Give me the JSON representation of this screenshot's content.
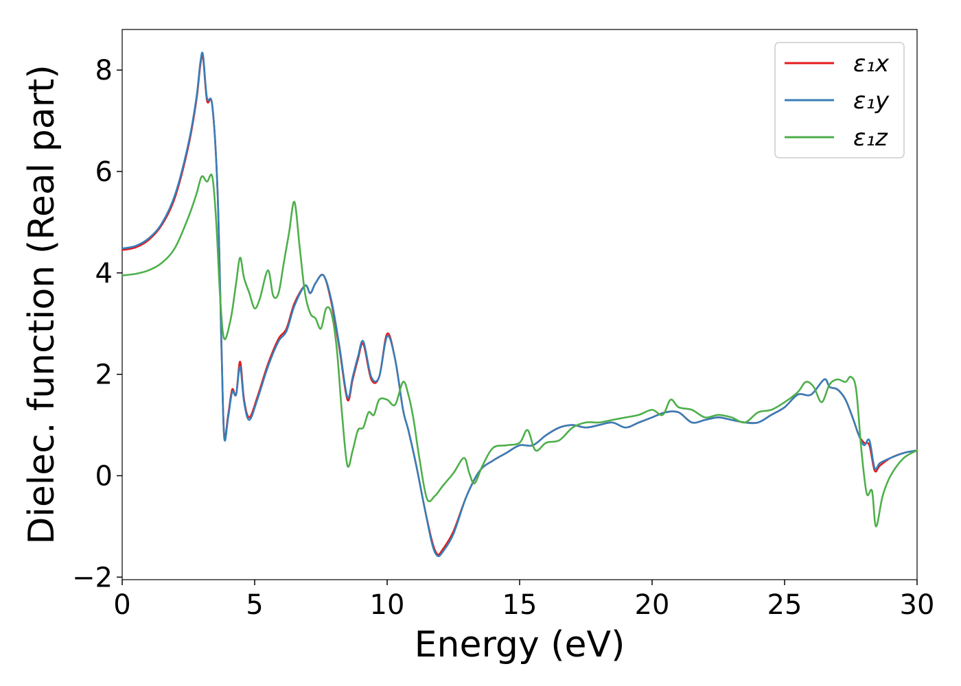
{
  "chart_data": {
    "type": "line",
    "xlabel": "Energy (eV)",
    "ylabel": "Dielec. function (Real part)",
    "xlim": [
      0,
      30
    ],
    "ylim": [
      -2.05,
      8.8
    ],
    "xticks": [
      0,
      5,
      10,
      15,
      20,
      25,
      30
    ],
    "xtick_labels": [
      "0",
      "5",
      "10",
      "15",
      "20",
      "25",
      "30"
    ],
    "yticks": [
      -2,
      0,
      2,
      4,
      6,
      8
    ],
    "ytick_labels": [
      "−2",
      "0",
      "2",
      "4",
      "6",
      "8"
    ],
    "grid": false,
    "legend_position": "top-right",
    "series": [
      {
        "name": "ε₁x",
        "color": "#e41a1c",
        "x": [
          0,
          0.5,
          1,
          1.5,
          2,
          2.5,
          2.8,
          2.95,
          3.05,
          3.2,
          3.4,
          3.6,
          3.75,
          3.85,
          4.0,
          4.15,
          4.3,
          4.45,
          4.6,
          4.8,
          5.1,
          5.5,
          5.9,
          6.2,
          6.5,
          6.9,
          7.1,
          7.3,
          7.6,
          7.9,
          8.2,
          8.5,
          8.7,
          8.9,
          9.1,
          9.4,
          9.7,
          10.0,
          10.3,
          10.6,
          10.8,
          11.1,
          11.4,
          11.7,
          11.9,
          12.1,
          12.5,
          13.0,
          13.5,
          14.0,
          14.5,
          15.0,
          15.5,
          16.0,
          16.5,
          17.0,
          17.5,
          18.0,
          18.5,
          19.0,
          19.5,
          20.0,
          20.5,
          21.0,
          21.5,
          22.0,
          22.5,
          23.0,
          23.5,
          24.0,
          24.5,
          25.0,
          25.5,
          26.0,
          26.5,
          26.7,
          27.0,
          27.3,
          27.6,
          27.8,
          28.0,
          28.2,
          28.4,
          28.6,
          29.0,
          29.5,
          30.0
        ],
        "y": [
          4.45,
          4.5,
          4.65,
          4.95,
          5.5,
          6.5,
          7.4,
          8.1,
          8.25,
          7.4,
          7.3,
          5.6,
          2.5,
          0.8,
          1.2,
          1.7,
          1.6,
          2.25,
          1.5,
          1.15,
          1.55,
          2.2,
          2.7,
          2.9,
          3.4,
          3.75,
          3.6,
          3.8,
          3.95,
          3.4,
          2.5,
          1.5,
          1.9,
          2.3,
          2.6,
          1.9,
          1.95,
          2.8,
          2.3,
          1.3,
          0.9,
          0.2,
          -0.6,
          -1.3,
          -1.55,
          -1.45,
          -1.1,
          -0.4,
          0.1,
          0.3,
          0.45,
          0.6,
          0.6,
          0.8,
          0.95,
          1.0,
          0.95,
          1.0,
          1.05,
          0.95,
          1.05,
          1.15,
          1.25,
          1.25,
          1.05,
          1.1,
          1.15,
          1.1,
          1.05,
          1.05,
          1.2,
          1.35,
          1.6,
          1.6,
          1.9,
          1.75,
          1.7,
          1.5,
          1.1,
          0.8,
          0.65,
          0.6,
          0.1,
          0.2,
          0.35,
          0.45,
          0.5
        ]
      },
      {
        "name": "ε₁y",
        "color": "#377eb8",
        "x": [
          0,
          0.5,
          1,
          1.5,
          2,
          2.5,
          2.8,
          2.95,
          3.05,
          3.2,
          3.4,
          3.6,
          3.75,
          3.85,
          4.0,
          4.15,
          4.3,
          4.45,
          4.6,
          4.8,
          5.1,
          5.5,
          5.9,
          6.2,
          6.5,
          6.9,
          7.1,
          7.3,
          7.6,
          7.9,
          8.2,
          8.5,
          8.7,
          8.9,
          9.1,
          9.4,
          9.7,
          10.0,
          10.3,
          10.6,
          10.8,
          11.1,
          11.4,
          11.7,
          11.9,
          12.1,
          12.5,
          13.0,
          13.5,
          14.0,
          14.5,
          15.0,
          15.5,
          16.0,
          16.5,
          17.0,
          17.5,
          18.0,
          18.5,
          19.0,
          19.5,
          20.0,
          20.5,
          21.0,
          21.5,
          22.0,
          22.5,
          23.0,
          23.5,
          24.0,
          24.5,
          25.0,
          25.5,
          26.0,
          26.5,
          26.7,
          27.0,
          27.3,
          27.6,
          27.8,
          28.0,
          28.2,
          28.4,
          28.6,
          29.0,
          29.5,
          30.0
        ],
        "y": [
          4.48,
          4.53,
          4.68,
          4.98,
          5.55,
          6.55,
          7.45,
          8.15,
          8.3,
          7.45,
          7.3,
          5.6,
          2.5,
          0.75,
          1.15,
          1.65,
          1.6,
          2.15,
          1.45,
          1.1,
          1.5,
          2.15,
          2.65,
          2.85,
          3.35,
          3.75,
          3.6,
          3.8,
          3.95,
          3.45,
          2.55,
          1.55,
          1.95,
          2.35,
          2.65,
          1.95,
          1.95,
          2.75,
          2.3,
          1.3,
          0.9,
          0.2,
          -0.6,
          -1.35,
          -1.58,
          -1.5,
          -1.15,
          -0.4,
          0.1,
          0.3,
          0.45,
          0.6,
          0.6,
          0.8,
          0.95,
          1.0,
          0.95,
          1.0,
          1.05,
          0.95,
          1.05,
          1.15,
          1.25,
          1.25,
          1.05,
          1.1,
          1.15,
          1.1,
          1.05,
          1.05,
          1.2,
          1.35,
          1.6,
          1.6,
          1.9,
          1.75,
          1.7,
          1.5,
          1.1,
          0.8,
          0.6,
          0.7,
          0.15,
          0.25,
          0.35,
          0.45,
          0.5
        ]
      },
      {
        "name": "ε₁z",
        "color": "#4daf4a",
        "x": [
          0,
          0.5,
          1,
          1.5,
          2,
          2.5,
          2.8,
          3.0,
          3.2,
          3.4,
          3.55,
          3.7,
          3.85,
          4.1,
          4.3,
          4.45,
          4.6,
          4.8,
          5.0,
          5.2,
          5.5,
          5.7,
          5.9,
          6.1,
          6.3,
          6.5,
          6.7,
          6.9,
          7.1,
          7.3,
          7.5,
          7.7,
          7.9,
          8.1,
          8.3,
          8.5,
          8.7,
          8.9,
          9.1,
          9.3,
          9.5,
          9.7,
          10.0,
          10.3,
          10.6,
          10.8,
          11.0,
          11.2,
          11.5,
          11.8,
          12.1,
          12.5,
          12.9,
          13.1,
          13.3,
          13.6,
          14.0,
          14.5,
          15.0,
          15.3,
          15.6,
          16.0,
          16.5,
          17.0,
          17.5,
          18.0,
          18.5,
          19.0,
          19.5,
          20.0,
          20.4,
          20.7,
          21.0,
          21.5,
          22.0,
          22.5,
          23.0,
          23.5,
          24.0,
          24.5,
          25.0,
          25.5,
          25.8,
          26.1,
          26.4,
          26.7,
          27.0,
          27.3,
          27.5,
          27.7,
          27.9,
          28.1,
          28.3,
          28.45,
          28.7,
          29.0,
          29.5,
          30.0
        ],
        "y": [
          3.95,
          3.98,
          4.05,
          4.2,
          4.5,
          5.1,
          5.55,
          5.9,
          5.8,
          5.9,
          5.0,
          3.5,
          2.7,
          3.1,
          3.8,
          4.3,
          3.9,
          3.6,
          3.3,
          3.5,
          4.05,
          3.55,
          3.6,
          4.2,
          4.8,
          5.4,
          4.5,
          3.6,
          3.2,
          3.1,
          2.9,
          3.3,
          3.2,
          2.5,
          1.2,
          0.2,
          0.5,
          0.9,
          0.95,
          1.25,
          1.2,
          1.5,
          1.5,
          1.4,
          1.85,
          1.6,
          1.1,
          0.4,
          -0.45,
          -0.4,
          -0.2,
          0.05,
          0.35,
          0.05,
          -0.15,
          0.2,
          0.55,
          0.6,
          0.65,
          0.9,
          0.5,
          0.65,
          0.7,
          0.95,
          1.05,
          1.05,
          1.1,
          1.15,
          1.2,
          1.3,
          1.2,
          1.5,
          1.35,
          1.3,
          1.15,
          1.2,
          1.15,
          1.05,
          1.25,
          1.3,
          1.45,
          1.65,
          1.85,
          1.75,
          1.45,
          1.8,
          1.9,
          1.85,
          1.95,
          1.7,
          0.5,
          -0.35,
          -0.3,
          -1.0,
          -0.4,
          0.0,
          0.35,
          0.5
        ]
      }
    ]
  }
}
